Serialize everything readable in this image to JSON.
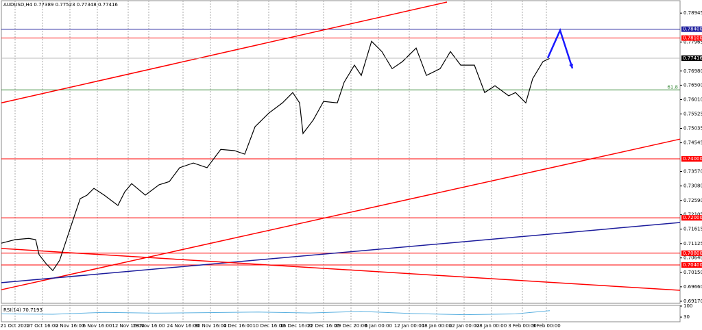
{
  "chart_data": {
    "type": "line",
    "title": "AUDUSD,H4 0.77389 0.77523 0.77348 0.77416",
    "color": "#000000",
    "x": [
      0,
      4,
      8,
      10,
      11,
      13,
      15,
      17,
      19,
      21,
      23,
      25,
      27,
      30,
      34,
      36,
      38,
      42,
      46,
      49,
      52,
      56,
      60,
      64,
      68,
      71,
      74,
      78,
      82,
      85,
      87,
      88,
      91,
      94,
      98,
      100,
      103,
      105,
      108,
      111,
      114,
      117,
      121,
      124,
      128,
      131,
      134,
      138,
      141,
      144,
      148,
      150,
      153,
      155,
      158,
      160
    ],
    "values": [
      0.7114,
      0.7126,
      0.713,
      0.7126,
      0.7075,
      0.7045,
      0.7021,
      0.7056,
      0.7126,
      0.7196,
      0.7265,
      0.7277,
      0.73,
      0.7277,
      0.7242,
      0.7288,
      0.7316,
      0.7277,
      0.7312,
      0.7323,
      0.737,
      0.7386,
      0.737,
      0.7432,
      0.7428,
      0.7416,
      0.7509,
      0.7555,
      0.759,
      0.7625,
      0.759,
      0.7486,
      0.7532,
      0.7595,
      0.759,
      0.766,
      0.7718,
      0.7683,
      0.7799,
      0.7764,
      0.7706,
      0.773,
      0.7776,
      0.7683,
      0.7706,
      0.7764,
      0.7718,
      0.7718,
      0.7625,
      0.7648,
      0.7614,
      0.7625,
      0.759,
      0.7672,
      0.773,
      0.7741
    ],
    "xlim": [
      0,
      198
    ],
    "ylim": [
      0.691,
      0.7939
    ],
    "yticks": [
      {
        "value": 0.78945,
        "label": "0.78945"
      },
      {
        "value": 0.77965,
        "label": "0.77965"
      },
      {
        "value": 0.7698,
        "label": "0.76980"
      },
      {
        "value": 0.765,
        "label": "0.76500"
      },
      {
        "value": 0.7601,
        "label": "0.76010"
      },
      {
        "value": 0.75525,
        "label": "0.75525"
      },
      {
        "value": 0.75035,
        "label": "0.75035"
      },
      {
        "value": 0.74545,
        "label": "0.74545"
      },
      {
        "value": 0.7357,
        "label": "0.73570"
      },
      {
        "value": 0.7308,
        "label": "0.73080"
      },
      {
        "value": 0.7259,
        "label": "0.72590"
      },
      {
        "value": 0.72105,
        "label": "0.72105"
      },
      {
        "value": 0.71615,
        "label": "0.71615"
      },
      {
        "value": 0.71125,
        "label": "0.71125"
      },
      {
        "value": 0.7064,
        "label": "0.70640"
      },
      {
        "value": 0.7015,
        "label": "0.70150"
      },
      {
        "value": 0.6966,
        "label": "0.69660"
      },
      {
        "value": 0.6917,
        "label": "0.69170"
      }
    ],
    "xticks": [
      {
        "value": 4,
        "label": "21 Oct 2020"
      },
      {
        "value": 12,
        "label": "27 Oct 16:00"
      },
      {
        "value": 20,
        "label": "2 Nov 16:00"
      },
      {
        "value": 28,
        "label": "6 Nov 16:00"
      },
      {
        "value": 37,
        "label": "12 Nov 16:00"
      },
      {
        "value": 43,
        "label": "18 Nov 16:00"
      },
      {
        "value": 53,
        "label": "24 Nov 16:00"
      },
      {
        "value": 61,
        "label": "30 Nov 16:00"
      },
      {
        "value": 69,
        "label": "4 Dec 16:00"
      },
      {
        "value": 78,
        "label": "10 Dec 16:00"
      },
      {
        "value": 86,
        "label": "16 Dec 16:00"
      },
      {
        "value": 94,
        "label": "22 Dec 16:00"
      },
      {
        "value": 102,
        "label": "29 Dec 20:00"
      },
      {
        "value": 110,
        "label": "6 Jan 00:00"
      },
      {
        "value": 119,
        "label": "12 Jan 00:00"
      },
      {
        "value": 127,
        "label": "18 Jan 00:00"
      },
      {
        "value": 135,
        "label": "22 Jan 00:00"
      },
      {
        "value": 143,
        "label": "28 Jan 00:00"
      },
      {
        "value": 152,
        "label": "3 Feb 00:00"
      },
      {
        "value": 159,
        "label": "9 Feb 00:00"
      }
    ],
    "levels": [
      {
        "value": 0.784,
        "label": "0.78400",
        "color": "#1c1c9c"
      },
      {
        "value": 0.781,
        "label": "0.78100",
        "color": "#ff0000"
      },
      {
        "value": 0.74,
        "label": "0.74000",
        "color": "#ff0000"
      },
      {
        "value": 0.72,
        "label": "0.72000",
        "color": "#ff0000"
      },
      {
        "value": 0.708,
        "label": "0.70800",
        "color": "#ff0000"
      },
      {
        "value": 0.704,
        "label": "0.70400",
        "color": "#ff0000"
      }
    ],
    "current": {
      "value": 0.77416,
      "label": "0.77416"
    },
    "fib": {
      "value": 0.7634,
      "label": "61.8",
      "color": "#3a8a3a"
    },
    "trendlines": [
      {
        "x": [
          0,
          130
        ],
        "y": [
          0.759,
          0.7932
        ],
        "color": "#ff0000"
      },
      {
        "x": [
          0,
          198
        ],
        "y": [
          0.6956,
          0.7467
        ],
        "color": "#ff0000"
      },
      {
        "x": [
          0,
          198
        ],
        "y": [
          0.698,
          0.7184
        ],
        "color": "#1c1c9c"
      },
      {
        "x": [
          0,
          198
        ],
        "y": [
          0.7096,
          0.6954
        ],
        "color": "#ff0000"
      }
    ],
    "projection": {
      "x": [
        159.4,
        163,
        166.6
      ],
      "values": [
        0.7742,
        0.7836,
        0.7707
      ],
      "color": "#1a1aff"
    },
    "rsi": {
      "title": "RSI(14) 70.7193",
      "ylim": [
        0,
        100
      ],
      "yticks": [
        100,
        30
      ],
      "color": "#5ab0e0",
      "x": [
        0,
        15,
        30,
        45,
        60,
        75,
        90,
        105,
        120,
        135,
        150,
        160
      ],
      "values": [
        50,
        48,
        60,
        55,
        58,
        62,
        56,
        66,
        52,
        45,
        50,
        70.7193
      ]
    }
  }
}
